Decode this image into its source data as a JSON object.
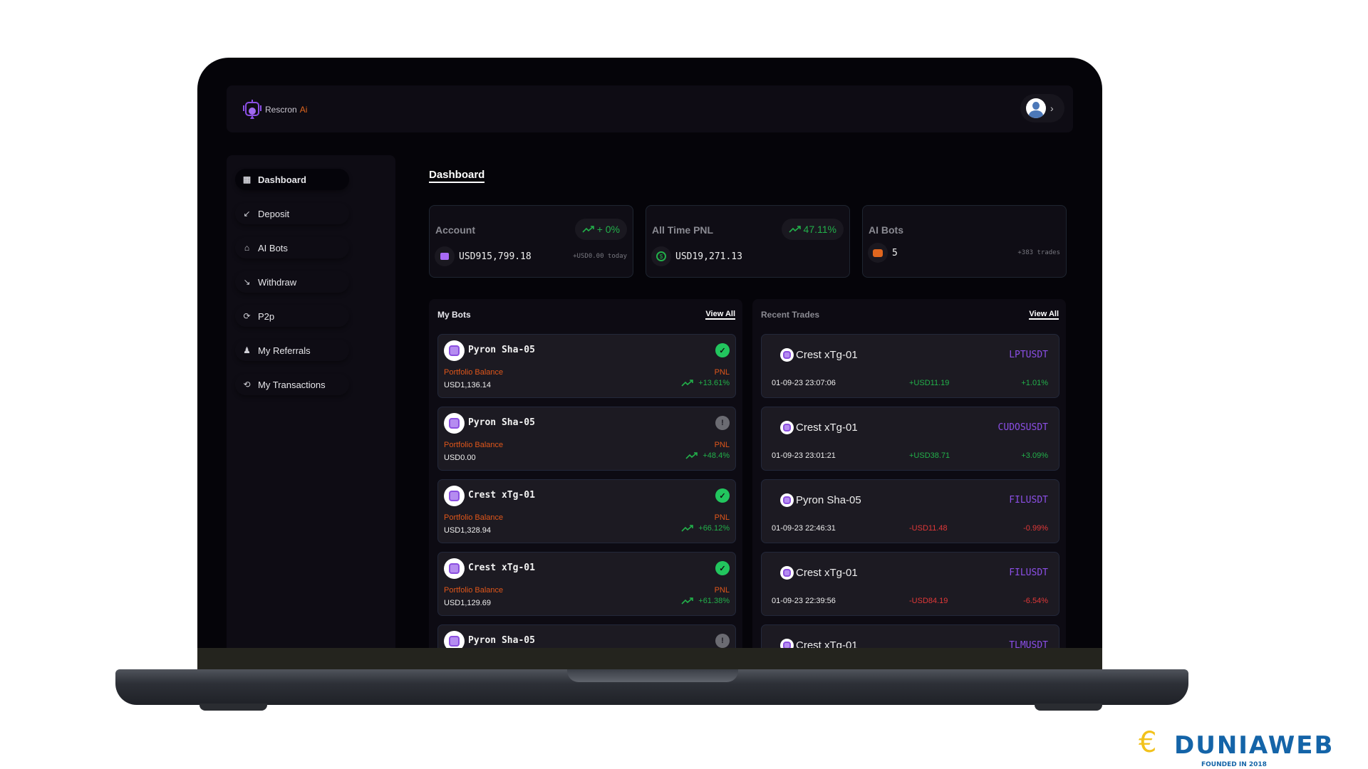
{
  "app": {
    "name": "Rescron",
    "name_suffix": "Ai"
  },
  "colors": {
    "accent": "#8b4fe6",
    "orange": "#e0561a",
    "positive": "#22b04a",
    "negative": "#e03838"
  },
  "sidebar": {
    "items": [
      {
        "label": "Dashboard",
        "icon": "grid-icon",
        "glyph": "▦",
        "active": true
      },
      {
        "label": "Deposit",
        "icon": "deposit-icon",
        "glyph": "↙"
      },
      {
        "label": "AI Bots",
        "icon": "robot-icon",
        "glyph": "⌂"
      },
      {
        "label": "Withdraw",
        "icon": "withdraw-icon",
        "glyph": "↘"
      },
      {
        "label": "P2p",
        "icon": "refresh-icon",
        "glyph": "⟳"
      },
      {
        "label": "My Referrals",
        "icon": "users-icon",
        "glyph": "♟"
      },
      {
        "label": "My Transactions",
        "icon": "transactions-icon",
        "glyph": "⟲"
      }
    ]
  },
  "page_title": "Dashboard",
  "cards": [
    {
      "label": "Account",
      "badge": "+ 0%",
      "value": "USD915,799.18",
      "sub": "+USD0.00 today",
      "icon": "wallet-icon"
    },
    {
      "label": "All Time PNL",
      "badge": "47.11%",
      "value": "USD19,271.13",
      "sub": "",
      "icon": "dollar-icon"
    },
    {
      "label": "AI Bots",
      "badge": "",
      "value": "5",
      "sub": "+383 trades",
      "icon": "robot-icon"
    }
  ],
  "my_bots": {
    "title": "My Bots",
    "view_all": "View All",
    "balance_label": "Portfolio Balance",
    "pnl_label": "PNL",
    "items": [
      {
        "name": "Pyron Sha-05",
        "status": "active",
        "balance": "USD1,136.14",
        "pnl": "+13.61%"
      },
      {
        "name": "Pyron Sha-05",
        "status": "inactive",
        "balance": "USD0.00",
        "pnl": "+48.4%"
      },
      {
        "name": "Crest xTg-01",
        "status": "active",
        "balance": "USD1,328.94",
        "pnl": "+66.12%"
      },
      {
        "name": "Crest xTg-01",
        "status": "active",
        "balance": "USD1,129.69",
        "pnl": "+61.38%"
      },
      {
        "name": "Pyron Sha-05",
        "status": "inactive",
        "balance": "",
        "pnl": ""
      }
    ]
  },
  "recent_trades": {
    "title": "Recent Trades",
    "view_all": "View All",
    "items": [
      {
        "bot": "Crest xTg-01",
        "pair": "LPTUSDT",
        "time": "01-09-23 23:07:06",
        "amount": "+USD11.19",
        "pct": "+1.01%",
        "dir": "pos"
      },
      {
        "bot": "Crest xTg-01",
        "pair": "CUDOSUSDT",
        "time": "01-09-23 23:01:21",
        "amount": "+USD38.71",
        "pct": "+3.09%",
        "dir": "pos"
      },
      {
        "bot": "Pyron Sha-05",
        "pair": "FILUSDT",
        "time": "01-09-23 22:46:31",
        "amount": "-USD11.48",
        "pct": "-0.99%",
        "dir": "neg"
      },
      {
        "bot": "Crest xTg-01",
        "pair": "FILUSDT",
        "time": "01-09-23 22:39:56",
        "amount": "-USD84.19",
        "pct": "-6.54%",
        "dir": "neg"
      },
      {
        "bot": "Crest xTg-01",
        "pair": "TLMUSDT",
        "time": "",
        "amount": "",
        "pct": "",
        "dir": "pos"
      }
    ]
  },
  "watermark": {
    "text": "DUNIAWEB",
    "tagline": "FOUNDED IN 2018"
  }
}
